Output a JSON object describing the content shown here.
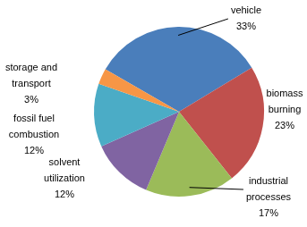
{
  "chart_data": {
    "type": "pie",
    "categories": [
      "vehicle",
      "biomass burning",
      "industrial processes",
      "solvent utilization",
      "fossil fuel combustion",
      "storage and transport"
    ],
    "values": [
      33,
      23,
      17,
      12,
      12,
      3
    ],
    "value_labels": [
      "33%",
      "23%",
      "17%",
      "12%",
      "12%",
      "3%"
    ],
    "colors": [
      "#4a7ebb",
      "#c0504d",
      "#9bbb59",
      "#8064a2",
      "#4bacc6",
      "#f79646"
    ],
    "data_labels": true
  }
}
